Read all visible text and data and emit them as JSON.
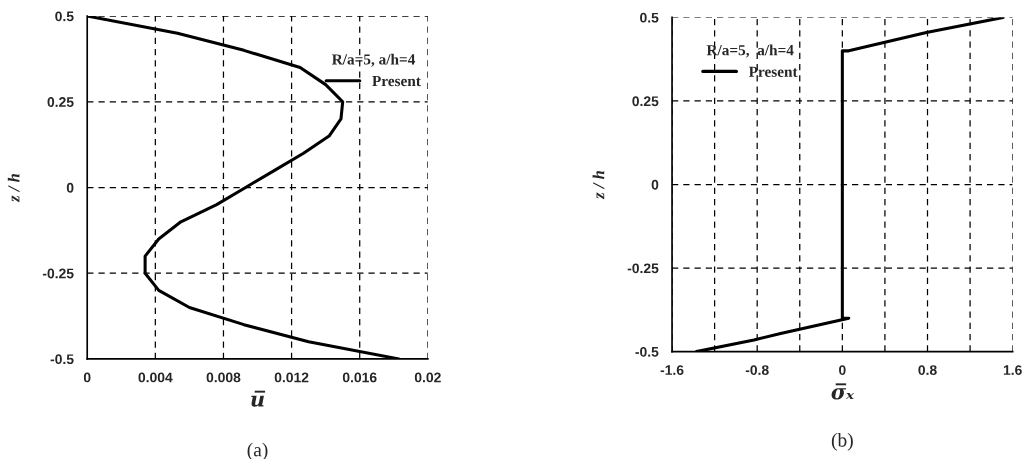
{
  "chart_data": [
    {
      "type": "line",
      "xlabel": "u̅",
      "ylabel": "z / h",
      "legend_title": "R/a=5, a/h=4",
      "legend": "top right",
      "grid": true,
      "xlim": [
        0,
        0.02
      ],
      "xticks": [
        0,
        0.004,
        0.008,
        0.012,
        0.016,
        0.02
      ],
      "ylim": [
        -0.5,
        0.5
      ],
      "yticks": [
        -0.5,
        -0.25,
        0,
        0.25,
        0.5
      ],
      "annotations": [
        "(a)"
      ],
      "series": [
        {
          "name": "Present",
          "color": "#000000",
          "x": [
            0,
            0.0053,
            0.0092,
            0.0125,
            0.014,
            0.015,
            0.0149,
            0.0142,
            0.0127,
            0.011,
            0.0093,
            0.0076,
            0.0055,
            0.0042,
            0.0034,
            0.0034,
            0.0042,
            0.006,
            0.0092,
            0.013,
            0.0183
          ],
          "values": [
            0.5,
            0.45,
            0.4,
            0.35,
            0.3,
            0.25,
            0.2,
            0.15,
            0.1,
            0.05,
            0,
            -0.05,
            -0.1,
            -0.15,
            -0.2,
            -0.25,
            -0.3,
            -0.35,
            -0.4,
            -0.45,
            -0.5
          ]
        }
      ]
    },
    {
      "type": "line",
      "xlabel": "σ̅ₓ",
      "ylabel": "z / h",
      "legend_title": "R/a=5,  a/h=4",
      "legend": "top left",
      "grid": true,
      "xlim": [
        -1.6,
        1.6
      ],
      "xticks": [
        -1.6,
        {
          "value": -1.2,
          "label": null
        },
        -0.8,
        {
          "value": -0.4,
          "label": null
        },
        0,
        {
          "value": 0.4,
          "label": null
        },
        0.8,
        {
          "value": 1.2,
          "label": null
        },
        1.6
      ],
      "ylim": [
        -0.5,
        0.5
      ],
      "yticks": [
        -0.5,
        -0.25,
        0,
        0.25,
        0.5
      ],
      "annotations": [
        "(b)"
      ],
      "series": [
        {
          "name": "Present",
          "color": "#000000",
          "x": [
            -1.37,
            -0.83,
            -0.58,
            0.06,
            0,
            0,
            0.06,
            0.42,
            0.79,
            1.51
          ],
          "values": [
            -0.5,
            -0.465,
            -0.446,
            -0.4,
            -0.4,
            0.4,
            0.4,
            0.427,
            0.455,
            0.5
          ]
        }
      ]
    }
  ]
}
